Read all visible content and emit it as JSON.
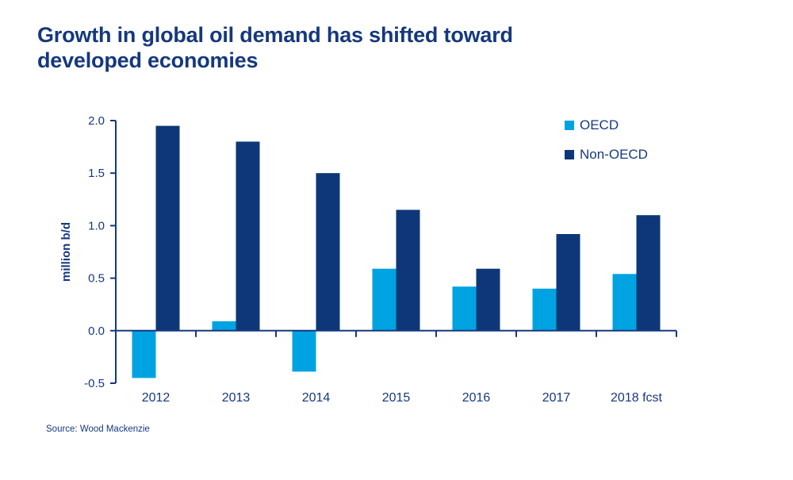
{
  "title": {
    "text": "Growth in global oil demand has shifted toward developed economies",
    "color": "#15387D"
  },
  "source": {
    "text": "Source: Wood Mackenzie"
  },
  "colors": {
    "text_navy": "#16397E",
    "axis": "#16397E",
    "background": "#FFFFFF",
    "oecd_cyan": "#00A3E1",
    "non_oecd_navy": "#0D3778"
  },
  "chart_data": {
    "type": "bar",
    "categories": [
      "2012",
      "2013",
      "2014",
      "2015",
      "2016",
      "2017",
      "2018 fcst"
    ],
    "series": [
      {
        "name": "OECD",
        "color": "#00A3E1",
        "values": [
          -0.45,
          0.09,
          -0.39,
          0.59,
          0.42,
          0.4,
          0.54
        ]
      },
      {
        "name": "Non-OECD",
        "color": "#0D3778",
        "values": [
          1.95,
          1.8,
          1.5,
          1.15,
          0.59,
          0.92,
          1.1
        ]
      }
    ],
    "title": "Growth in global oil demand has shifted toward developed economies",
    "xlabel": "",
    "ylabel": "million b/d",
    "ylim": [
      -0.5,
      2.0
    ],
    "yticks": [
      2.0,
      1.5,
      1.0,
      0.5,
      0.0,
      -0.5
    ],
    "grid": false,
    "legend_position": "top-right"
  }
}
